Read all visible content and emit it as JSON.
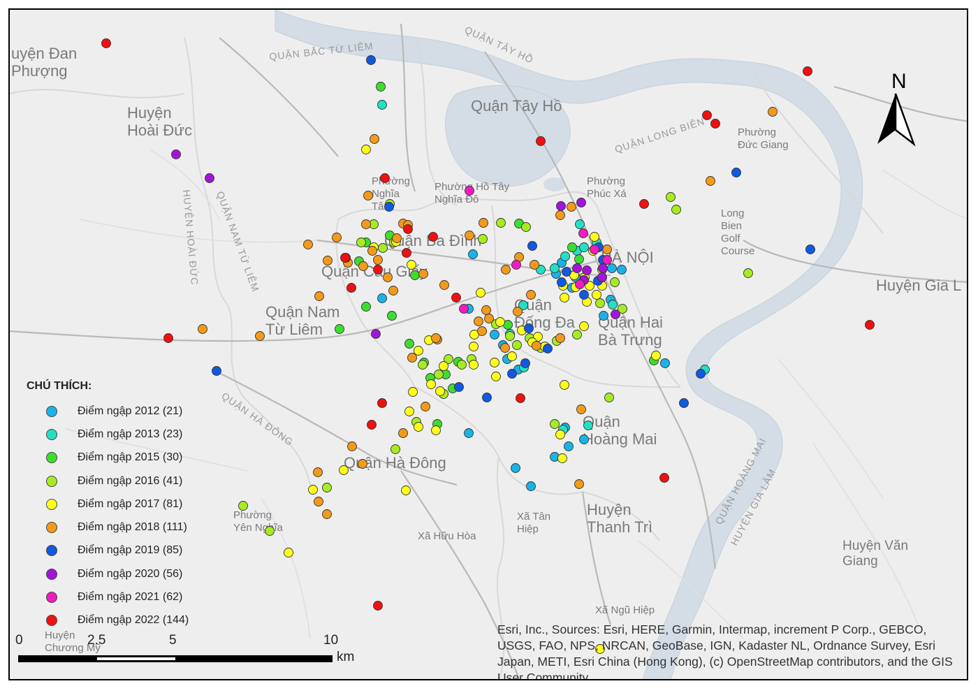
{
  "map": {
    "north_label": "N",
    "background_color": "#eeeeee",
    "water_color": "#d4dde6",
    "boundary_color": "#cfcfcf",
    "places": [
      {
        "name": "place-huyen-dan-phuong",
        "lines": [
          "uyện Đan",
          "Phượng"
        ],
        "cls": "place-lg"
      },
      {
        "name": "place-huyen-hoai-duc",
        "lines": [
          "Huyện",
          "Hoài Đức"
        ],
        "cls": "place-lg"
      },
      {
        "name": "place-quan-bac-tu-liem",
        "lines": [
          "QUẬN BẮC TỪ LIÊM"
        ],
        "cls": "place-road"
      },
      {
        "name": "place-quan-tay-ho-road",
        "lines": [
          "QUẬN TÂY HỒ"
        ],
        "cls": "place-road"
      },
      {
        "name": "place-quan-tay-ho",
        "lines": [
          "Quận Tây Hồ"
        ],
        "cls": "place-lg"
      },
      {
        "name": "place-quan-long-bien-road",
        "lines": [
          "QUẬN LONG BIÊN"
        ],
        "cls": "place-road"
      },
      {
        "name": "place-phuong-duc-giang",
        "lines": [
          "Phường",
          "Đức Giang"
        ],
        "cls": "place-sm"
      },
      {
        "name": "place-phuong-nghia-tan",
        "lines": [
          "Phường",
          "Nghĩa",
          "Tân"
        ],
        "cls": "place-sm"
      },
      {
        "name": "place-phuong-nghia-do",
        "lines": [
          "Phường Hồ Tây",
          "Nghĩa Đô"
        ],
        "cls": "place-sm"
      },
      {
        "name": "place-phuong-phuc-xa",
        "lines": [
          "Phường",
          "Phúc Xá"
        ],
        "cls": "place-sm"
      },
      {
        "name": "place-long-bien-golf",
        "lines": [
          "Long",
          "Bien",
          "Golf",
          "Course"
        ],
        "cls": "place-sm"
      },
      {
        "name": "place-quan-ba-dinh",
        "lines": [
          "Quận Ba Đình"
        ],
        "cls": "place-lg"
      },
      {
        "name": "place-quan-cau-giay",
        "lines": [
          "Quận Cầu Giấy"
        ],
        "cls": "place-lg"
      },
      {
        "name": "place-ha-noi",
        "lines": [
          "HÀ NỘI"
        ],
        "cls": "place-lg"
      },
      {
        "name": "place-huyen-gia-lam",
        "lines": [
          "Huyện Gia L"
        ],
        "cls": "place-lg"
      },
      {
        "name": "place-huyen-hoai-duc-road",
        "lines": [
          "HUYỆN HOÀI ĐỨC"
        ],
        "cls": "place-road"
      },
      {
        "name": "place-quan-nam-tu-liem-road",
        "lines": [
          "QUẬN NAM TỪ LIÊM"
        ],
        "cls": "place-road"
      },
      {
        "name": "place-quan-nam-tu-liem",
        "lines": [
          "Quận Nam",
          "Từ Liêm"
        ],
        "cls": "place-lg"
      },
      {
        "name": "place-quan-dong-da",
        "lines": [
          "Quận",
          "Đống Đa"
        ],
        "cls": "place-lg"
      },
      {
        "name": "place-quan-hai-ba-trung",
        "lines": [
          "Quận Hai",
          "Bà Trưng"
        ],
        "cls": "place-lg"
      },
      {
        "name": "place-quan-ha-dong-road",
        "lines": [
          "QUẬN HÀ ĐÔNG"
        ],
        "cls": "place-road"
      },
      {
        "name": "place-quan-ha-dong",
        "lines": [
          "Quận Hà Đông"
        ],
        "cls": "place-lg"
      },
      {
        "name": "place-quan-hoang-mai",
        "lines": [
          "Quận",
          "Hoàng Mai"
        ],
        "cls": "place-lg"
      },
      {
        "name": "place-quan-hoang-mai-road",
        "lines": [
          "QUẬN HOÀNG MAI"
        ],
        "cls": "place-road"
      },
      {
        "name": "place-huyen-gia-lam-road",
        "lines": [
          "HUYỆN GIA LÂM"
        ],
        "cls": "place-road"
      },
      {
        "name": "place-phuong-yen-nghia",
        "lines": [
          "Phường",
          "Yên Nghĩa"
        ],
        "cls": "place-sm"
      },
      {
        "name": "place-xa-tan-hiep",
        "lines": [
          "Xã Tân",
          "Hiệp"
        ],
        "cls": "place-sm"
      },
      {
        "name": "place-xa-huu-hoa",
        "lines": [
          "Xã Hữu Hòa"
        ],
        "cls": "place-sm"
      },
      {
        "name": "place-huyen-thanh-tri",
        "lines": [
          "Huyện",
          "Thanh Trì"
        ],
        "cls": "place-lg"
      },
      {
        "name": "place-huyen-van-giang",
        "lines": [
          "Huyện Văn",
          "Giang"
        ],
        "cls": "place-md"
      },
      {
        "name": "place-xa-ngu-hiep",
        "lines": [
          "Xã Ngũ Hiệp"
        ],
        "cls": "place-sm"
      },
      {
        "name": "place-huyen-chuong-my",
        "lines": [
          "Huyện",
          "Chương Mỹ"
        ],
        "cls": "place-sm"
      }
    ]
  },
  "legend": {
    "title": "CHÚ THÍCH:",
    "items": [
      {
        "label": "Điểm ngập 2012 (21)",
        "color": "#1ab3e8",
        "key": "y2012"
      },
      {
        "label": "Điểm ngập 2013 (23)",
        "color": "#22e0c4",
        "key": "y2013"
      },
      {
        "label": "Điểm ngập 2015 (30)",
        "color": "#3ede2f",
        "key": "y2015"
      },
      {
        "label": "Điểm ngập 2016 (41)",
        "color": "#a6ec22",
        "key": "y2016"
      },
      {
        "label": "Điểm ngập 2017 (81)",
        "color": "#ffff1a",
        "key": "y2017"
      },
      {
        "label": "Điểm ngập 2018 (111)",
        "color": "#f39a1b",
        "key": "y2018"
      },
      {
        "label": "Điểm ngập 2019 (85)",
        "color": "#0f5ae0",
        "key": "y2019"
      },
      {
        "label": "Điểm ngập 2020 (56)",
        "color": "#a414d8",
        "key": "y2020"
      },
      {
        "label": "Điểm ngập 2021 (62)",
        "color": "#f21bc0",
        "key": "y2021"
      },
      {
        "label": "Điểm ngập 2022 (144)",
        "color": "#f20f0f",
        "key": "y2022"
      }
    ]
  },
  "scale": {
    "ticks": [
      "0",
      "2.5",
      "5",
      "10"
    ],
    "unit": "km"
  },
  "attribution": "Esri, Inc., Sources: Esri, HERE, Garmin, Intermap, increment P Corp., GEBCO, USGS, FAO, NPS, NRCAN, GeoBase, IGN, Kadaster NL, Ordnance Survey, Esri Japan, METI, Esri China (Hong Kong), (c) OpenStreetMap contributors, and the GIS User Community"
}
